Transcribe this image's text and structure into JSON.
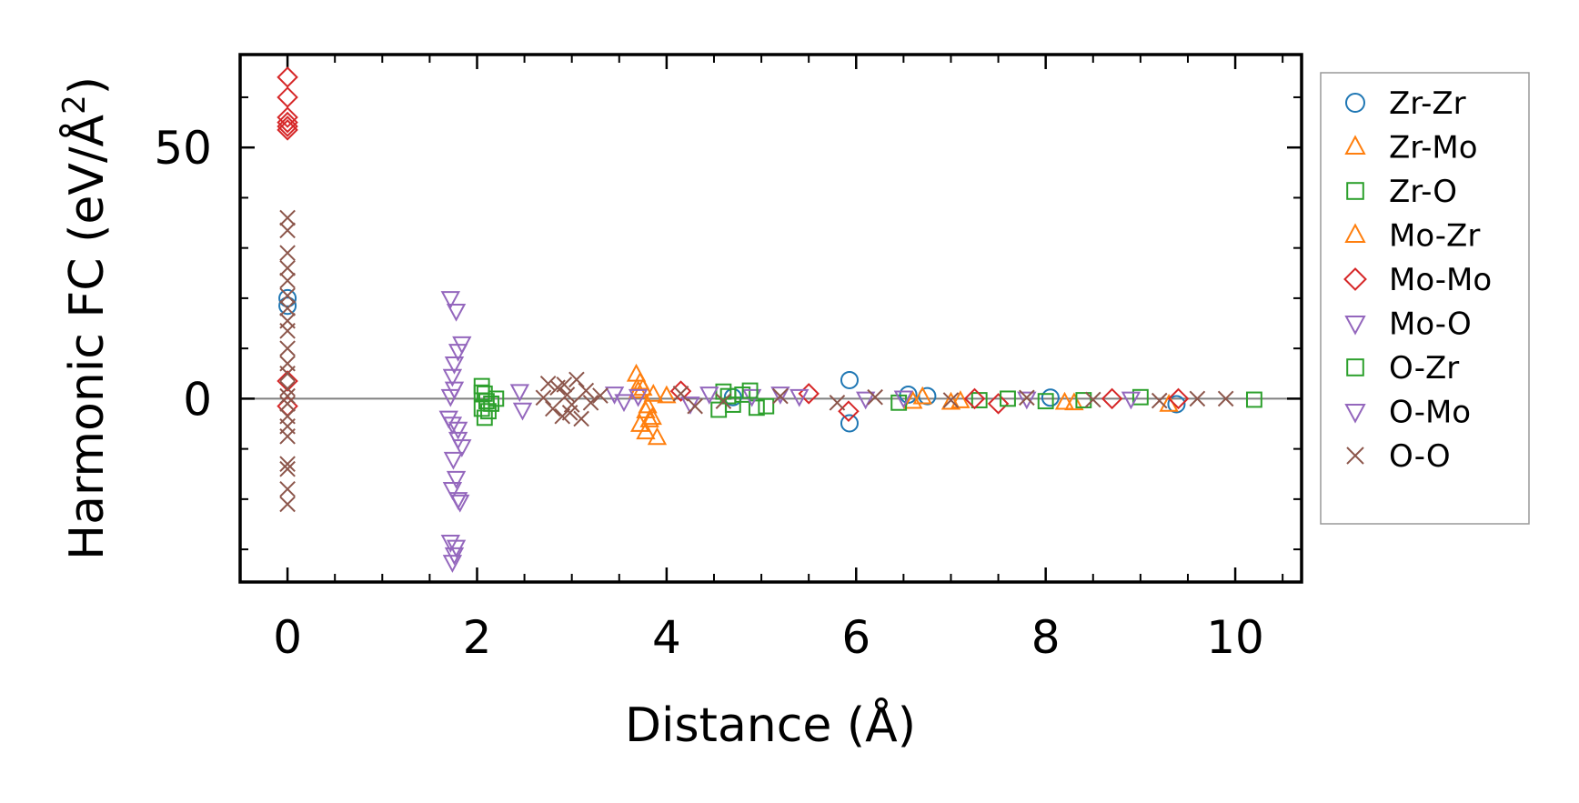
{
  "chart_data": {
    "type": "scatter",
    "title": "",
    "xlabel": "Distance (Å)",
    "ylabel_main": "Harmonic FC (eV/Å",
    "ylabel_sup": "2",
    "ylabel_close": ")",
    "xlim": [
      -0.5,
      10.7
    ],
    "ylim": [
      -36.5,
      68.5
    ],
    "xticks": [
      0,
      2,
      4,
      6,
      8,
      10
    ],
    "yticks": [
      0,
      50
    ],
    "xminor_step": 0.5,
    "yminor_step": 10,
    "zero_line": true,
    "grid": false,
    "legend_position": "outside-right",
    "series": [
      {
        "name": "Zr-Zr",
        "marker": "circle",
        "color": "#1f77b4",
        "points": [
          [
            0.0,
            18.5
          ],
          [
            0.0,
            20.0
          ],
          [
            5.93,
            3.7
          ],
          [
            5.93,
            -4.9
          ],
          [
            6.55,
            0.8
          ],
          [
            6.75,
            0.5
          ],
          [
            9.38,
            -1.1
          ],
          [
            8.05,
            0.2
          ],
          [
            4.7,
            0.3
          ]
        ]
      },
      {
        "name": "Zr-Mo",
        "marker": "triangle-up",
        "color": "#ff7f0e",
        "points": [
          [
            3.68,
            4.8
          ],
          [
            3.72,
            3.2
          ],
          [
            3.75,
            2.0
          ],
          [
            3.8,
            -1.5
          ],
          [
            3.85,
            -3.8
          ],
          [
            3.72,
            -5.2
          ],
          [
            3.78,
            -6.7
          ],
          [
            3.9,
            -7.8
          ],
          [
            3.82,
            -4.3
          ],
          [
            4.0,
            0.5
          ],
          [
            6.6,
            -0.6
          ],
          [
            7.0,
            -0.8
          ],
          [
            8.3,
            -0.9
          ],
          [
            9.3,
            -1.2
          ]
        ]
      },
      {
        "name": "Zr-O",
        "marker": "square",
        "color": "#2ca02c",
        "points": [
          [
            2.05,
            2.5
          ],
          [
            2.05,
            1.2
          ],
          [
            2.1,
            -0.5
          ],
          [
            2.05,
            -2.0
          ],
          [
            2.08,
            -3.8
          ],
          [
            2.15,
            -1.0
          ],
          [
            2.2,
            0.0
          ],
          [
            4.6,
            1.4
          ],
          [
            4.7,
            -1.2
          ],
          [
            4.8,
            0.8
          ],
          [
            4.95,
            -1.8
          ],
          [
            4.55,
            -2.2
          ],
          [
            6.45,
            -0.8
          ],
          [
            7.3,
            -0.3
          ],
          [
            8.0,
            -0.5
          ],
          [
            9.0,
            0.3
          ],
          [
            10.2,
            -0.2
          ]
        ]
      },
      {
        "name": "Mo-Zr",
        "marker": "triangle-up",
        "color": "#ff7f0e",
        "points": [
          [
            3.7,
            1.5
          ],
          [
            3.78,
            -2.5
          ],
          [
            3.86,
            0.8
          ],
          [
            6.7,
            0.3
          ],
          [
            7.1,
            -0.5
          ],
          [
            8.2,
            -0.8
          ]
        ]
      },
      {
        "name": "Mo-Mo",
        "marker": "diamond",
        "color": "#d62728",
        "points": [
          [
            0.0,
            64.0
          ],
          [
            0.0,
            60.0
          ],
          [
            0.0,
            56.0
          ],
          [
            0.0,
            54.2
          ],
          [
            0.0,
            53.5
          ],
          [
            0.0,
            55.0
          ],
          [
            0.0,
            3.5
          ],
          [
            0.0,
            -1.5
          ],
          [
            4.15,
            1.5
          ],
          [
            5.5,
            1.0
          ],
          [
            5.92,
            -2.5
          ],
          [
            7.25,
            0.0
          ],
          [
            7.5,
            -1.0
          ],
          [
            8.7,
            0.0
          ],
          [
            9.4,
            0.0
          ]
        ]
      },
      {
        "name": "Mo-O",
        "marker": "triangle-down",
        "color": "#9467bd",
        "points": [
          [
            1.72,
            20.0
          ],
          [
            1.78,
            17.5
          ],
          [
            1.84,
            11.0
          ],
          [
            1.8,
            9.5
          ],
          [
            1.76,
            7.0
          ],
          [
            1.74,
            4.5
          ],
          [
            1.72,
            0.5
          ],
          [
            1.7,
            -3.8
          ],
          [
            1.74,
            -5.0
          ],
          [
            1.8,
            -8.0
          ],
          [
            1.84,
            -9.5
          ],
          [
            1.78,
            -15.8
          ],
          [
            1.74,
            -18.0
          ],
          [
            1.82,
            -20.5
          ],
          [
            1.72,
            -28.5
          ],
          [
            1.78,
            -29.5
          ],
          [
            1.76,
            -31.0
          ],
          [
            1.74,
            -32.5
          ],
          [
            2.45,
            1.5
          ],
          [
            2.48,
            -2.2
          ],
          [
            3.45,
            1.0
          ],
          [
            3.7,
            0.5
          ],
          [
            4.25,
            -1.0
          ],
          [
            4.9,
            0.5
          ],
          [
            5.2,
            1.0
          ],
          [
            6.1,
            0.0
          ]
        ]
      },
      {
        "name": "O-Zr",
        "marker": "square",
        "color": "#2ca02c",
        "points": [
          [
            2.08,
            1.0
          ],
          [
            2.12,
            -2.5
          ],
          [
            4.65,
            0.5
          ],
          [
            4.88,
            1.6
          ],
          [
            5.05,
            -1.5
          ],
          [
            7.6,
            0.0
          ],
          [
            8.4,
            -0.3
          ]
        ]
      },
      {
        "name": "O-Mo",
        "marker": "triangle-down",
        "color": "#9467bd",
        "points": [
          [
            1.76,
            2.0
          ],
          [
            1.8,
            -6.0
          ],
          [
            1.75,
            -12.0
          ],
          [
            1.8,
            -20.0
          ],
          [
            3.55,
            -0.5
          ],
          [
            4.45,
            1.0
          ],
          [
            5.4,
            0.5
          ],
          [
            6.5,
            0.2
          ],
          [
            7.8,
            0.0
          ],
          [
            8.9,
            0.0
          ]
        ]
      },
      {
        "name": "O-O",
        "marker": "x",
        "color": "#8c564b",
        "points": [
          [
            0.0,
            36.0
          ],
          [
            0.0,
            33.5
          ],
          [
            0.0,
            29.0
          ],
          [
            0.0,
            26.0
          ],
          [
            0.0,
            23.5
          ],
          [
            0.0,
            20.5
          ],
          [
            0.0,
            18.0
          ],
          [
            0.0,
            15.5
          ],
          [
            0.0,
            13.5
          ],
          [
            0.0,
            10.0
          ],
          [
            0.0,
            7.0
          ],
          [
            0.0,
            5.0
          ],
          [
            0.0,
            2.0
          ],
          [
            0.0,
            0.5
          ],
          [
            0.0,
            -1.0
          ],
          [
            0.0,
            -3.5
          ],
          [
            0.0,
            -5.5
          ],
          [
            0.0,
            -7.5
          ],
          [
            0.0,
            -13.0
          ],
          [
            0.0,
            -14.0
          ],
          [
            0.0,
            -18.0
          ],
          [
            0.0,
            -21.0
          ],
          [
            2.75,
            3.0
          ],
          [
            2.8,
            -2.0
          ],
          [
            2.85,
            2.2
          ],
          [
            2.9,
            -3.5
          ],
          [
            2.95,
            0.8
          ],
          [
            3.0,
            -1.2
          ],
          [
            3.05,
            3.8
          ],
          [
            3.1,
            -4.0
          ],
          [
            3.15,
            1.6
          ],
          [
            2.92,
            2.8
          ],
          [
            2.98,
            -2.8
          ],
          [
            3.2,
            -0.8
          ],
          [
            3.3,
            0.6
          ],
          [
            2.7,
            0.2
          ],
          [
            4.15,
            1.0
          ],
          [
            4.3,
            -1.5
          ],
          [
            4.6,
            -0.5
          ],
          [
            5.2,
            0.5
          ],
          [
            5.8,
            -0.8
          ],
          [
            6.2,
            0.3
          ],
          [
            7.0,
            -0.3
          ],
          [
            7.8,
            0.2
          ],
          [
            8.5,
            -0.2
          ],
          [
            9.2,
            -0.4
          ],
          [
            9.6,
            0.0
          ],
          [
            9.9,
            0.0
          ]
        ]
      }
    ]
  }
}
